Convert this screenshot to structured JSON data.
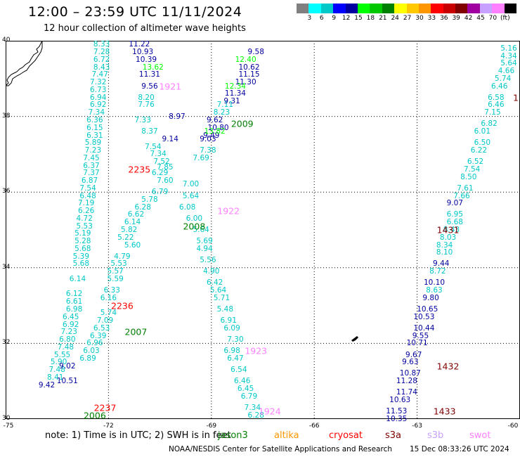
{
  "header": {
    "title": "12:00 – 23:59 UTC 11/11/2024",
    "subtitle": "12 hour collection of altimeter wave heights"
  },
  "colorbar": {
    "colors": [
      "#808080",
      "#00ffff",
      "#00c8c8",
      "#0000ff",
      "#0000a0",
      "#00ff00",
      "#00c800",
      "#008000",
      "#ffff00",
      "#ffc800",
      "#ff9600",
      "#ff0000",
      "#c80000",
      "#800000",
      "#a000a0",
      "#c8a0ff",
      "#ff80ff",
      "#000000"
    ],
    "ticks": [
      "3",
      "6",
      "9",
      "12",
      "15",
      "18",
      "21",
      "24",
      "27",
      "30",
      "33",
      "36",
      "39",
      "42",
      "45",
      "70",
      "(ft)"
    ]
  },
  "axes": {
    "lat_ticks": [
      "40",
      "38",
      "36",
      "34",
      "32",
      "30"
    ],
    "lon_ticks": [
      "-75",
      "-72",
      "-69",
      "-66",
      "-63",
      "-60"
    ],
    "lat_range": [
      30,
      40
    ],
    "lon_range": [
      -75,
      -60
    ],
    "grid": "dotted"
  },
  "map_features": [
    "coastline-northwest",
    "island-bermuda"
  ],
  "footer": {
    "note": "note:  1) Time is in UTC; 2) SWH is in feet",
    "satellites": [
      {
        "name": "jason3",
        "color": "#008000"
      },
      {
        "name": "altika",
        "color": "#ff9600"
      },
      {
        "name": "cryosat",
        "color": "#ff0000"
      },
      {
        "name": "s3a",
        "color": "#800000"
      },
      {
        "name": "s3b",
        "color": "#c8a0ff"
      },
      {
        "name": "swot",
        "color": "#ff80ff"
      }
    ],
    "credit": "NOAA/NESDIS Center for Satellite Applications and Research",
    "timestamp": "15 Dec 08:33:26 UTC 2024"
  },
  "time_labels": [
    {
      "t": "1921",
      "lon": -70.2,
      "lat": 38.8,
      "color": "#ff80ff"
    },
    {
      "t": "2009",
      "lon": -68.1,
      "lat": 37.8,
      "color": "#008000"
    },
    {
      "t": "2235",
      "lon": -71.1,
      "lat": 36.6,
      "color": "#ff0000"
    },
    {
      "t": "1922",
      "lon": -68.5,
      "lat": 35.5,
      "color": "#ff80ff"
    },
    {
      "t": "2008",
      "lon": -69.5,
      "lat": 35.1,
      "color": "#008000"
    },
    {
      "t": "2236",
      "lon": -71.6,
      "lat": 33.0,
      "color": "#ff0000"
    },
    {
      "t": "2007",
      "lon": -71.2,
      "lat": 32.3,
      "color": "#008000"
    },
    {
      "t": "1923",
      "lon": -67.7,
      "lat": 31.8,
      "color": "#ff80ff"
    },
    {
      "t": "2237",
      "lon": -72.1,
      "lat": 30.3,
      "color": "#ff0000"
    },
    {
      "t": "2006",
      "lon": -72.4,
      "lat": 30.1,
      "color": "#008000"
    },
    {
      "t": "1924",
      "lon": -67.3,
      "lat": 30.2,
      "color": "#ff80ff"
    },
    {
      "t": "1431",
      "lon": -62.1,
      "lat": 35.0,
      "color": "#800000"
    },
    {
      "t": "1432",
      "lon": -62.1,
      "lat": 31.4,
      "color": "#800000"
    },
    {
      "t": "1433",
      "lon": -62.2,
      "lat": 30.2,
      "color": "#800000"
    },
    {
      "t": "1",
      "lon": -60.1,
      "lat": 38.5,
      "color": "#800000"
    }
  ],
  "track_west": {
    "color": "#00c8c8",
    "points": [
      {
        "v": "8.33",
        "lon": -72.2,
        "lat": 39.9
      },
      {
        "v": "7.28",
        "lon": -72.2,
        "lat": 39.7
      },
      {
        "v": "6.72",
        "lon": -72.2,
        "lat": 39.5
      },
      {
        "v": "8.43",
        "lon": -72.2,
        "lat": 39.3
      },
      {
        "v": "7.47",
        "lon": -72.25,
        "lat": 39.1
      },
      {
        "v": "7.32",
        "lon": -72.3,
        "lat": 38.9
      },
      {
        "v": "6.73",
        "lon": -72.3,
        "lat": 38.7
      },
      {
        "v": "6.94",
        "lon": -72.3,
        "lat": 38.5
      },
      {
        "v": "6.92",
        "lon": -72.3,
        "lat": 38.3
      },
      {
        "v": "7.34",
        "lon": -72.35,
        "lat": 38.1
      },
      {
        "v": "6.36",
        "lon": -72.4,
        "lat": 37.9
      },
      {
        "v": "6.15",
        "lon": -72.4,
        "lat": 37.7
      },
      {
        "v": "6.31",
        "lon": -72.4,
        "lat": 37.5
      },
      {
        "v": "5.89",
        "lon": -72.45,
        "lat": 37.3
      },
      {
        "v": "7.23",
        "lon": -72.45,
        "lat": 37.1
      },
      {
        "v": "7.45",
        "lon": -72.5,
        "lat": 36.9
      },
      {
        "v": "6.37",
        "lon": -72.5,
        "lat": 36.7
      },
      {
        "v": "7.37",
        "lon": -72.5,
        "lat": 36.5
      },
      {
        "v": "6.87",
        "lon": -72.55,
        "lat": 36.3
      },
      {
        "v": "7.54",
        "lon": -72.6,
        "lat": 36.1
      },
      {
        "v": "6.48",
        "lon": -72.6,
        "lat": 35.9
      },
      {
        "v": "7.19",
        "lon": -72.65,
        "lat": 35.7
      },
      {
        "v": "6.26",
        "lon": -72.65,
        "lat": 35.5
      },
      {
        "v": "4.72",
        "lon": -72.7,
        "lat": 35.3
      },
      {
        "v": "5.53",
        "lon": -72.7,
        "lat": 35.1
      },
      {
        "v": "5.19",
        "lon": -72.75,
        "lat": 34.9
      },
      {
        "v": "5.28",
        "lon": -72.75,
        "lat": 34.7
      },
      {
        "v": "5.68",
        "lon": -72.75,
        "lat": 34.5
      },
      {
        "v": "5.39",
        "lon": -72.8,
        "lat": 34.3
      },
      {
        "v": "5.68",
        "lon": -72.8,
        "lat": 34.1
      },
      {
        "v": "6.14",
        "lon": -72.9,
        "lat": 33.7
      },
      {
        "v": "6.12",
        "lon": -73.0,
        "lat": 33.3
      },
      {
        "v": "6.61",
        "lon": -73.0,
        "lat": 33.1
      },
      {
        "v": "6.98",
        "lon": -73.0,
        "lat": 32.9
      },
      {
        "v": "6.45",
        "lon": -73.1,
        "lat": 32.7
      },
      {
        "v": "6.92",
        "lon": -73.1,
        "lat": 32.5
      },
      {
        "v": "7.23",
        "lon": -73.15,
        "lat": 32.3
      },
      {
        "v": "6.80",
        "lon": -73.2,
        "lat": 32.1
      },
      {
        "v": "7.48",
        "lon": -73.25,
        "lat": 31.9
      },
      {
        "v": "5.55",
        "lon": -73.35,
        "lat": 31.7
      },
      {
        "v": "5.90",
        "lon": -73.45,
        "lat": 31.5
      },
      {
        "v": "7.48",
        "lon": -73.5,
        "lat": 31.3
      },
      {
        "v": "8.41",
        "lon": -73.55,
        "lat": 31.1
      }
    ]
  },
  "track_west_b": {
    "color": "#0000a0",
    "points": [
      {
        "v": "11.22",
        "lon": -71.1,
        "lat": 39.9
      },
      {
        "v": "10.93",
        "lon": -71.0,
        "lat": 39.7
      },
      {
        "v": "10.39",
        "lon": -70.9,
        "lat": 39.5
      },
      {
        "v": "11.31",
        "lon": -70.8,
        "lat": 39.1
      },
      {
        "v": "9.56",
        "lon": -70.8,
        "lat": 38.8
      },
      {
        "v": "8.97",
        "lon": -70.0,
        "lat": 38.0
      },
      {
        "v": "9.14",
        "lon": -70.2,
        "lat": 37.4
      },
      {
        "v": "9.49",
        "lon": -69.0,
        "lat": 37.5
      },
      {
        "v": "9.02",
        "lon": -73.2,
        "lat": 31.4
      },
      {
        "v": "9.42",
        "lon": -73.8,
        "lat": 30.9
      },
      {
        "v": "10.51",
        "lon": -73.2,
        "lat": 31.0
      }
    ]
  },
  "track_mid": {
    "color": "#00c8c8",
    "points": [
      {
        "v": "8.20",
        "lon": -70.9,
        "lat": 38.5
      },
      {
        "v": "7.76",
        "lon": -70.9,
        "lat": 38.3
      },
      {
        "v": "7.33",
        "lon": -71.0,
        "lat": 37.9
      },
      {
        "v": "8.37",
        "lon": -70.8,
        "lat": 37.6
      },
      {
        "v": "7.54",
        "lon": -70.7,
        "lat": 37.2
      },
      {
        "v": "7.34",
        "lon": -70.55,
        "lat": 37.0
      },
      {
        "v": "7.52",
        "lon": -70.45,
        "lat": 36.8
      },
      {
        "v": "7.85",
        "lon": -70.35,
        "lat": 36.65
      },
      {
        "v": "6.29",
        "lon": -70.5,
        "lat": 36.5
      },
      {
        "v": "7.60",
        "lon": -70.35,
        "lat": 36.3
      },
      {
        "v": "6.79",
        "lon": -70.5,
        "lat": 36.0
      },
      {
        "v": "5.78",
        "lon": -70.8,
        "lat": 35.8
      },
      {
        "v": "6.28",
        "lon": -71.0,
        "lat": 35.6
      },
      {
        "v": "6.62",
        "lon": -71.2,
        "lat": 35.4
      },
      {
        "v": "6.14",
        "lon": -71.3,
        "lat": 35.2
      },
      {
        "v": "5.82",
        "lon": -71.4,
        "lat": 35.0
      },
      {
        "v": "5.22",
        "lon": -71.5,
        "lat": 34.8
      },
      {
        "v": "5.60",
        "lon": -71.3,
        "lat": 34.6
      },
      {
        "v": "4.79",
        "lon": -71.6,
        "lat": 34.3
      },
      {
        "v": "5.53",
        "lon": -71.7,
        "lat": 34.1
      },
      {
        "v": "5.57",
        "lon": -71.8,
        "lat": 33.9
      },
      {
        "v": "5.59",
        "lon": -71.8,
        "lat": 33.7
      },
      {
        "v": "6.33",
        "lon": -71.9,
        "lat": 33.4
      },
      {
        "v": "6.16",
        "lon": -72.0,
        "lat": 33.2
      },
      {
        "v": "5.74",
        "lon": -72.0,
        "lat": 32.8
      },
      {
        "v": "7.09",
        "lon": -72.1,
        "lat": 32.6
      },
      {
        "v": "6.53",
        "lon": -72.2,
        "lat": 32.4
      },
      {
        "v": "6.39",
        "lon": -72.3,
        "lat": 32.2
      },
      {
        "v": "6.96",
        "lon": -72.4,
        "lat": 32.0
      },
      {
        "v": "6.03",
        "lon": -72.5,
        "lat": 31.8
      },
      {
        "v": "6.89",
        "lon": -72.6,
        "lat": 31.6
      }
    ]
  },
  "track_mid_b": {
    "color": "#00c8c8",
    "points": [
      {
        "v": "7.11",
        "lon": -68.6,
        "lat": 38.3
      },
      {
        "v": "8.23",
        "lon": -68.7,
        "lat": 38.1
      },
      {
        "v": "7.38",
        "lon": -69.1,
        "lat": 37.1
      },
      {
        "v": "7.69",
        "lon": -69.3,
        "lat": 36.9
      },
      {
        "v": "7.00",
        "lon": -69.6,
        "lat": 36.2
      },
      {
        "v": "5.64",
        "lon": -69.6,
        "lat": 35.9
      },
      {
        "v": "6.08",
        "lon": -69.7,
        "lat": 35.6
      },
      {
        "v": "6.00",
        "lon": -69.5,
        "lat": 35.3
      },
      {
        "v": "5.64",
        "lon": -69.3,
        "lat": 35.0
      },
      {
        "v": "5.69",
        "lon": -69.2,
        "lat": 34.7
      },
      {
        "v": "4.94",
        "lon": -69.2,
        "lat": 34.5
      },
      {
        "v": "5.56",
        "lon": -69.1,
        "lat": 34.2
      },
      {
        "v": "4.90",
        "lon": -69.0,
        "lat": 33.9
      },
      {
        "v": "6.42",
        "lon": -68.9,
        "lat": 33.6
      },
      {
        "v": "5.64",
        "lon": -68.8,
        "lat": 33.4
      },
      {
        "v": "5.71",
        "lon": -68.7,
        "lat": 33.2
      },
      {
        "v": "5.48",
        "lon": -68.6,
        "lat": 32.9
      },
      {
        "v": "6.91",
        "lon": -68.5,
        "lat": 32.6
      },
      {
        "v": "6.09",
        "lon": -68.4,
        "lat": 32.4
      },
      {
        "v": "7.30",
        "lon": -68.3,
        "lat": 32.1
      },
      {
        "v": "6.98",
        "lon": -68.4,
        "lat": 31.8
      },
      {
        "v": "6.47",
        "lon": -68.3,
        "lat": 31.6
      },
      {
        "v": "6.54",
        "lon": -68.2,
        "lat": 31.3
      },
      {
        "v": "6.46",
        "lon": -68.1,
        "lat": 31.0
      },
      {
        "v": "6.45",
        "lon": -68.0,
        "lat": 30.8
      },
      {
        "v": "6.79",
        "lon": -67.9,
        "lat": 30.6
      },
      {
        "v": "7.34",
        "lon": -67.8,
        "lat": 30.3
      },
      {
        "v": "6.28",
        "lon": -67.7,
        "lat": 30.1
      }
    ]
  },
  "track_ne": {
    "color": "#0000a0",
    "points": [
      {
        "v": "9.58",
        "lon": -67.7,
        "lat": 39.7
      },
      {
        "v": "10.62",
        "lon": -67.9,
        "lat": 39.3
      },
      {
        "v": "11.15",
        "lon": -67.9,
        "lat": 39.1
      },
      {
        "v": "11.30",
        "lon": -68.0,
        "lat": 38.9
      },
      {
        "v": "11.34",
        "lon": -68.3,
        "lat": 38.6
      },
      {
        "v": "9.31",
        "lon": -68.4,
        "lat": 38.4
      },
      {
        "v": "9.62",
        "lon": -68.9,
        "lat": 37.9
      },
      {
        "v": "10.80",
        "lon": -68.8,
        "lat": 37.7
      },
      {
        "v": "9.03",
        "lon": -69.1,
        "lat": 37.4
      }
    ]
  },
  "track_ne_g": {
    "color": "#00ff00",
    "points": [
      {
        "v": "12.40",
        "lon": -68.0,
        "lat": 39.5
      },
      {
        "v": "13.62",
        "lon": -70.7,
        "lat": 39.3
      },
      {
        "v": "12.34",
        "lon": -68.3,
        "lat": 38.8
      },
      {
        "v": "13.82",
        "lon": -68.9,
        "lat": 37.6
      }
    ]
  },
  "track_east": {
    "color": "#00c8c8",
    "points": [
      {
        "v": "5.16",
        "lon": -60.2,
        "lat": 39.8
      },
      {
        "v": "4.34",
        "lon": -60.2,
        "lat": 39.6
      },
      {
        "v": "5.64",
        "lon": -60.3,
        "lat": 39.4
      },
      {
        "v": "4.66",
        "lon": -60.4,
        "lat": 39.2
      },
      {
        "v": "5.74",
        "lon": -60.5,
        "lat": 39.0
      },
      {
        "v": "6.46",
        "lon": -60.6,
        "lat": 38.8
      },
      {
        "v": "6.58",
        "lon": -60.7,
        "lat": 38.5
      },
      {
        "v": "6.46",
        "lon": -60.7,
        "lat": 38.3
      },
      {
        "v": "7.15",
        "lon": -60.8,
        "lat": 38.1
      },
      {
        "v": "6.82",
        "lon": -60.9,
        "lat": 37.8
      },
      {
        "v": "6.01",
        "lon": -61.1,
        "lat": 37.6
      },
      {
        "v": "6.50",
        "lon": -61.1,
        "lat": 37.3
      },
      {
        "v": "6.22",
        "lon": -61.2,
        "lat": 37.1
      },
      {
        "v": "6.52",
        "lon": -61.3,
        "lat": 36.8
      },
      {
        "v": "7.54",
        "lon": -61.4,
        "lat": 36.6
      },
      {
        "v": "8.50",
        "lon": -61.5,
        "lat": 36.4
      },
      {
        "v": "7.61",
        "lon": -61.6,
        "lat": 36.1
      },
      {
        "v": "7.66",
        "lon": -61.7,
        "lat": 35.9
      },
      {
        "v": "6.95",
        "lon": -61.9,
        "lat": 35.4
      },
      {
        "v": "6.68",
        "lon": -61.9,
        "lat": 35.2
      },
      {
        "v": "8.43",
        "lon": -62.0,
        "lat": 35.0
      },
      {
        "v": "8.03",
        "lon": -62.1,
        "lat": 34.8
      },
      {
        "v": "8.34",
        "lon": -62.2,
        "lat": 34.6
      },
      {
        "v": "8.10",
        "lon": -62.2,
        "lat": 34.4
      },
      {
        "v": "8.72",
        "lon": -62.4,
        "lat": 33.9
      },
      {
        "v": "8.63",
        "lon": -62.5,
        "lat": 33.4
      }
    ]
  },
  "track_east_b": {
    "color": "#0000a0",
    "points": [
      {
        "v": "9.07",
        "lon": -61.9,
        "lat": 35.7
      },
      {
        "v": "9.44",
        "lon": -62.3,
        "lat": 34.1
      },
      {
        "v": "10.10",
        "lon": -62.5,
        "lat": 33.6
      },
      {
        "v": "9.80",
        "lon": -62.6,
        "lat": 33.2
      },
      {
        "v": "10.65",
        "lon": -62.7,
        "lat": 32.9
      },
      {
        "v": "10.53",
        "lon": -62.8,
        "lat": 32.7
      },
      {
        "v": "10.44",
        "lon": -62.8,
        "lat": 32.4
      },
      {
        "v": "9.55",
        "lon": -62.9,
        "lat": 32.2
      },
      {
        "v": "10.71",
        "lon": -63.0,
        "lat": 32.0
      },
      {
        "v": "9.67",
        "lon": -63.1,
        "lat": 31.7
      },
      {
        "v": "9.63",
        "lon": -63.2,
        "lat": 31.5
      },
      {
        "v": "10.87",
        "lon": -63.2,
        "lat": 31.2
      },
      {
        "v": "11.28",
        "lon": -63.3,
        "lat": 31.0
      },
      {
        "v": "11.74",
        "lon": -63.3,
        "lat": 30.7
      },
      {
        "v": "10.63",
        "lon": -63.5,
        "lat": 30.5
      },
      {
        "v": "11.53",
        "lon": -63.6,
        "lat": 30.2
      },
      {
        "v": "10.35",
        "lon": -63.6,
        "lat": 30.0
      }
    ]
  }
}
